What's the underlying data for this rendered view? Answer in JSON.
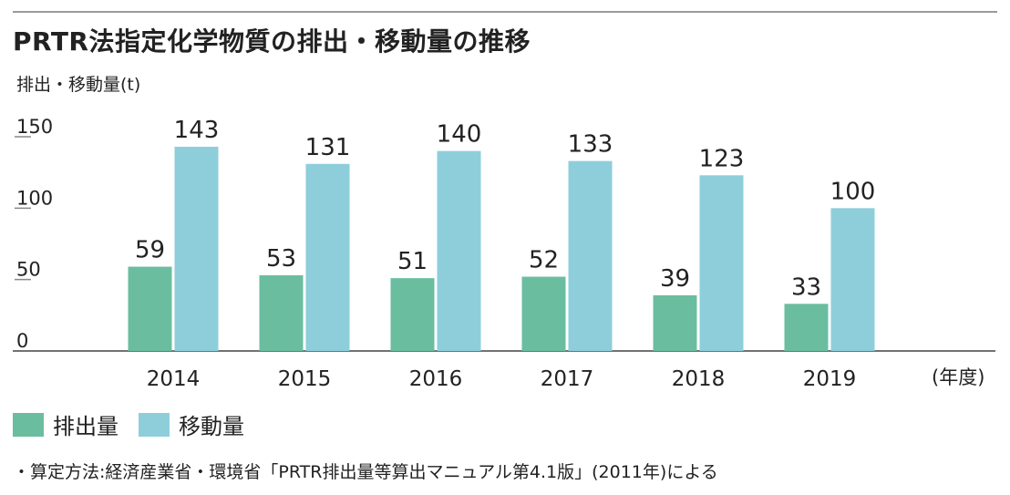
{
  "chart_data": {
    "type": "bar",
    "title": "PRTR法指定化学物質の排出・移動量の推移",
    "ylabel": "排出・移動量(t)",
    "xlabel": "(年度)",
    "categories": [
      "2014",
      "2015",
      "2016",
      "2017",
      "2018",
      "2019"
    ],
    "series": [
      {
        "name": "排出量",
        "values": [
          59,
          53,
          51,
          52,
          39,
          33
        ],
        "color": "#6bbda0"
      },
      {
        "name": "移動量",
        "values": [
          143,
          131,
          140,
          133,
          123,
          100
        ],
        "color": "#8ecedb"
      }
    ],
    "yticks": [
      "0",
      "50",
      "100",
      "150"
    ],
    "ylim": [
      0,
      150
    ],
    "grid": false,
    "legend_position": "bottom-left"
  },
  "footnote": "・算定方法:経済産業省・環境省「PRTR排出量等算出マニュアル第4.1版」(2011年)による",
  "colors": {
    "text": "#222222",
    "axis": "#444444",
    "rule": "#9a9a9a"
  }
}
